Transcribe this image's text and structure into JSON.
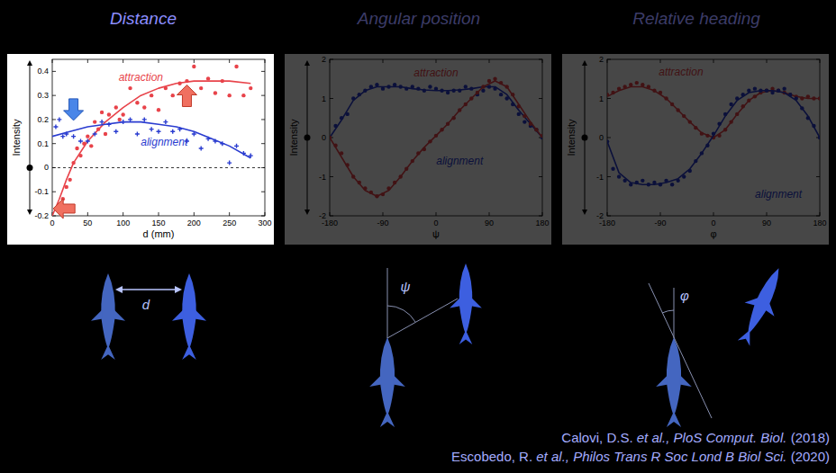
{
  "chart_data": [
    {
      "type": "line",
      "title": "Distance",
      "y_label": "Intensity",
      "x_label": "d (mm)",
      "xlim": [
        0,
        300
      ],
      "xticks": [
        0,
        50,
        100,
        150,
        200,
        250,
        300
      ],
      "ylim": [
        -0.2,
        0.45
      ],
      "yticks": [
        -0.2,
        -0.1,
        0,
        0.1,
        0.2,
        0.3,
        0.4
      ],
      "series": [
        {
          "type": "scatter",
          "marker": "circle",
          "color": "#e8434a",
          "x": [
            5,
            10,
            15,
            20,
            25,
            30,
            35,
            40,
            45,
            50,
            55,
            60,
            65,
            70,
            75,
            80,
            90,
            95,
            100,
            110,
            120,
            130,
            140,
            150,
            160,
            170,
            180,
            190,
            200,
            210,
            220,
            230,
            240,
            250,
            260,
            270,
            280
          ],
          "values": [
            -0.17,
            -0.16,
            -0.13,
            -0.08,
            -0.05,
            0.02,
            0.08,
            0.05,
            0.1,
            0.13,
            0.09,
            0.19,
            0.16,
            0.23,
            0.14,
            0.22,
            0.25,
            0.2,
            0.22,
            0.33,
            0.27,
            0.25,
            0.3,
            0.24,
            0.33,
            0.3,
            0.35,
            0.36,
            0.42,
            0.33,
            0.37,
            0.31,
            0.36,
            0.3,
            0.42,
            0.3,
            0.33
          ]
        },
        {
          "type": "line",
          "name": "attraction",
          "color": "#e8434a",
          "x": [
            0,
            10,
            20,
            30,
            50,
            75,
            100,
            125,
            150,
            175,
            200,
            250,
            280
          ],
          "values": [
            -0.2,
            -0.13,
            -0.05,
            0.02,
            0.11,
            0.19,
            0.25,
            0.3,
            0.33,
            0.35,
            0.36,
            0.36,
            0.35
          ]
        },
        {
          "type": "scatter",
          "marker": "plus",
          "color": "#2a3cd0",
          "x": [
            5,
            10,
            15,
            20,
            30,
            40,
            50,
            60,
            70,
            80,
            90,
            100,
            110,
            120,
            130,
            140,
            150,
            160,
            170,
            180,
            190,
            200,
            210,
            220,
            230,
            240,
            250,
            260,
            270,
            280
          ],
          "values": [
            0.17,
            0.2,
            0.13,
            0.14,
            0.13,
            0.11,
            0.11,
            0.14,
            0.19,
            0.18,
            0.15,
            0.19,
            0.2,
            0.14,
            0.2,
            0.16,
            0.15,
            0.19,
            0.15,
            0.16,
            0.11,
            0.14,
            0.08,
            0.12,
            0.11,
            0.1,
            0.02,
            0.09,
            0.06,
            0.05
          ]
        },
        {
          "type": "line",
          "name": "alignment",
          "color": "#2a3cd0",
          "x": [
            0,
            25,
            50,
            75,
            100,
            125,
            150,
            175,
            200,
            225,
            250,
            280
          ],
          "values": [
            0.13,
            0.15,
            0.17,
            0.18,
            0.19,
            0.19,
            0.18,
            0.17,
            0.15,
            0.12,
            0.09,
            0.04
          ]
        }
      ]
    },
    {
      "type": "line",
      "title": "Angular position",
      "y_label": "Intensity",
      "x_label": "ψ",
      "xlim": [
        -180,
        180
      ],
      "xticks": [
        -180,
        -90,
        0,
        90,
        180
      ],
      "ylim": [
        -2,
        2
      ],
      "yticks": [
        -2,
        -1,
        0,
        1,
        2
      ],
      "series": [
        {
          "type": "scatter",
          "marker": "circle",
          "color": "#2a3cd0",
          "x": [
            -180,
            -170,
            -160,
            -150,
            -140,
            -130,
            -120,
            -110,
            -100,
            -90,
            -80,
            -70,
            -60,
            -50,
            -40,
            -30,
            -20,
            -10,
            0,
            10,
            20,
            30,
            40,
            50,
            60,
            70,
            80,
            90,
            100,
            110,
            120,
            130,
            140,
            150,
            160,
            170,
            180
          ],
          "values": [
            0,
            0.3,
            0.5,
            0.6,
            1.0,
            1.1,
            1.2,
            1.3,
            1.35,
            1.25,
            1.3,
            1.35,
            1.3,
            1.25,
            1.3,
            1.25,
            1.2,
            1.3,
            1.25,
            1.2,
            1.15,
            1.2,
            1.2,
            1.3,
            1.25,
            1.1,
            1.2,
            1.3,
            1.25,
            1.1,
            1.0,
            0.85,
            0.6,
            0.4,
            0.3,
            0.2,
            0
          ]
        },
        {
          "type": "line",
          "name": "alignment",
          "color": "#2a3cd0",
          "x": [
            -180,
            -160,
            -140,
            -120,
            -100,
            -80,
            -60,
            -40,
            -20,
            0,
            20,
            40,
            60,
            80,
            100,
            120,
            140,
            160,
            180
          ],
          "values": [
            0,
            0.45,
            0.95,
            1.2,
            1.3,
            1.3,
            1.3,
            1.25,
            1.22,
            1.2,
            1.2,
            1.22,
            1.25,
            1.3,
            1.3,
            1.1,
            0.7,
            0.35,
            0
          ]
        },
        {
          "type": "scatter",
          "marker": "circle",
          "color": "#e8434a",
          "x": [
            -180,
            -170,
            -160,
            -150,
            -140,
            -130,
            -120,
            -110,
            -100,
            -90,
            -80,
            -70,
            -60,
            -50,
            -40,
            -30,
            -20,
            -10,
            0,
            10,
            20,
            30,
            40,
            50,
            60,
            70,
            80,
            90,
            100,
            110,
            120,
            130,
            140,
            150,
            160,
            170,
            180
          ],
          "values": [
            0,
            -0.2,
            -0.4,
            -0.7,
            -1.0,
            -1.15,
            -1.3,
            -1.4,
            -1.5,
            -1.45,
            -1.3,
            -1.15,
            -1.0,
            -0.8,
            -0.6,
            -0.4,
            -0.3,
            -0.1,
            0.05,
            0.2,
            0.35,
            0.5,
            0.7,
            0.85,
            1.0,
            1.15,
            1.3,
            1.45,
            1.5,
            1.4,
            1.3,
            1.1,
            0.8,
            0.55,
            0.35,
            0.2,
            0.05
          ]
        },
        {
          "type": "line",
          "name": "attraction",
          "color": "#e8434a",
          "x": [
            -180,
            -160,
            -140,
            -120,
            -100,
            -80,
            -60,
            -40,
            -20,
            0,
            20,
            40,
            60,
            80,
            100,
            120,
            140,
            160,
            180
          ],
          "values": [
            0,
            -0.5,
            -1.0,
            -1.35,
            -1.5,
            -1.35,
            -1.0,
            -0.6,
            -0.25,
            0.05,
            0.35,
            0.7,
            1.0,
            1.3,
            1.45,
            1.3,
            0.85,
            0.4,
            0
          ]
        }
      ]
    },
    {
      "type": "line",
      "title": "Relative heading",
      "y_label": "Intensity",
      "x_label": "φ",
      "xlim": [
        -180,
        180
      ],
      "xticks": [
        -180,
        -90,
        0,
        90,
        180
      ],
      "ylim": [
        -2,
        2
      ],
      "yticks": [
        -2,
        -1,
        0,
        1,
        2
      ],
      "series": [
        {
          "type": "scatter",
          "marker": "circle",
          "color": "#e8434a",
          "x": [
            -180,
            -170,
            -160,
            -150,
            -140,
            -130,
            -120,
            -110,
            -100,
            -90,
            -80,
            -70,
            -60,
            -50,
            -40,
            -30,
            -20,
            -10,
            0,
            10,
            20,
            30,
            40,
            50,
            60,
            70,
            80,
            90,
            100,
            110,
            120,
            130,
            140,
            150,
            160,
            170,
            180
          ],
          "values": [
            1.1,
            1.15,
            1.25,
            1.3,
            1.35,
            1.4,
            1.35,
            1.3,
            1.2,
            1.15,
            1.0,
            0.85,
            0.7,
            0.55,
            0.4,
            0.25,
            0.1,
            0.05,
            0.0,
            0.05,
            0.2,
            0.4,
            0.6,
            0.8,
            0.95,
            1.05,
            1.15,
            1.2,
            1.25,
            1.2,
            1.15,
            1.1,
            1.05,
            1.0,
            1.05,
            1.0,
            1.0
          ]
        },
        {
          "type": "line",
          "name": "attraction",
          "color": "#e8434a",
          "x": [
            -180,
            -160,
            -140,
            -120,
            -100,
            -80,
            -60,
            -40,
            -20,
            0,
            20,
            40,
            60,
            80,
            100,
            120,
            140,
            160,
            180
          ],
          "values": [
            1.05,
            1.2,
            1.3,
            1.3,
            1.2,
            1.0,
            0.7,
            0.4,
            0.12,
            0.0,
            0.2,
            0.6,
            0.95,
            1.15,
            1.2,
            1.15,
            1.05,
            1.0,
            1.0
          ]
        },
        {
          "type": "scatter",
          "marker": "circle",
          "color": "#2a3cd0",
          "x": [
            -180,
            -170,
            -160,
            -150,
            -140,
            -130,
            -120,
            -110,
            -100,
            -90,
            -80,
            -70,
            -60,
            -50,
            -40,
            -30,
            -20,
            -10,
            0,
            10,
            20,
            30,
            40,
            50,
            60,
            70,
            80,
            90,
            100,
            110,
            120,
            130,
            140,
            150,
            160,
            170,
            180
          ],
          "values": [
            -0.1,
            -0.8,
            -1.0,
            -1.1,
            -1.2,
            -1.15,
            -1.1,
            -1.2,
            -1.15,
            -1.2,
            -1.1,
            -1.2,
            -1.1,
            -1.0,
            -0.85,
            -0.6,
            -0.4,
            -0.2,
            0.1,
            0.35,
            0.6,
            0.85,
            1.0,
            1.1,
            1.2,
            1.25,
            1.2,
            1.2,
            1.15,
            1.2,
            1.25,
            1.1,
            1.0,
            0.75,
            0.5,
            0.3,
            0
          ]
        },
        {
          "type": "line",
          "name": "alignment",
          "color": "#2a3cd0",
          "x": [
            -180,
            -160,
            -140,
            -120,
            -100,
            -80,
            -60,
            -40,
            -20,
            0,
            20,
            40,
            60,
            80,
            100,
            120,
            140,
            160,
            180
          ],
          "values": [
            -0.1,
            -0.9,
            -1.15,
            -1.2,
            -1.2,
            -1.15,
            -1.05,
            -0.8,
            -0.4,
            0.05,
            0.55,
            0.95,
            1.15,
            1.2,
            1.2,
            1.15,
            0.95,
            0.55,
            0
          ]
        }
      ]
    }
  ],
  "diagram_labels": [
    "d",
    "ψ",
    "φ"
  ],
  "citations": [
    [
      "Calovi, D.S. ",
      "et al.,",
      " ",
      "PloS Comput. Biol.",
      " (2018)"
    ],
    [
      "Escobedo, R. ",
      "et al.,",
      " ",
      "Philos Trans R Soc Lond B Biol Sci.",
      " (2020)"
    ]
  ]
}
